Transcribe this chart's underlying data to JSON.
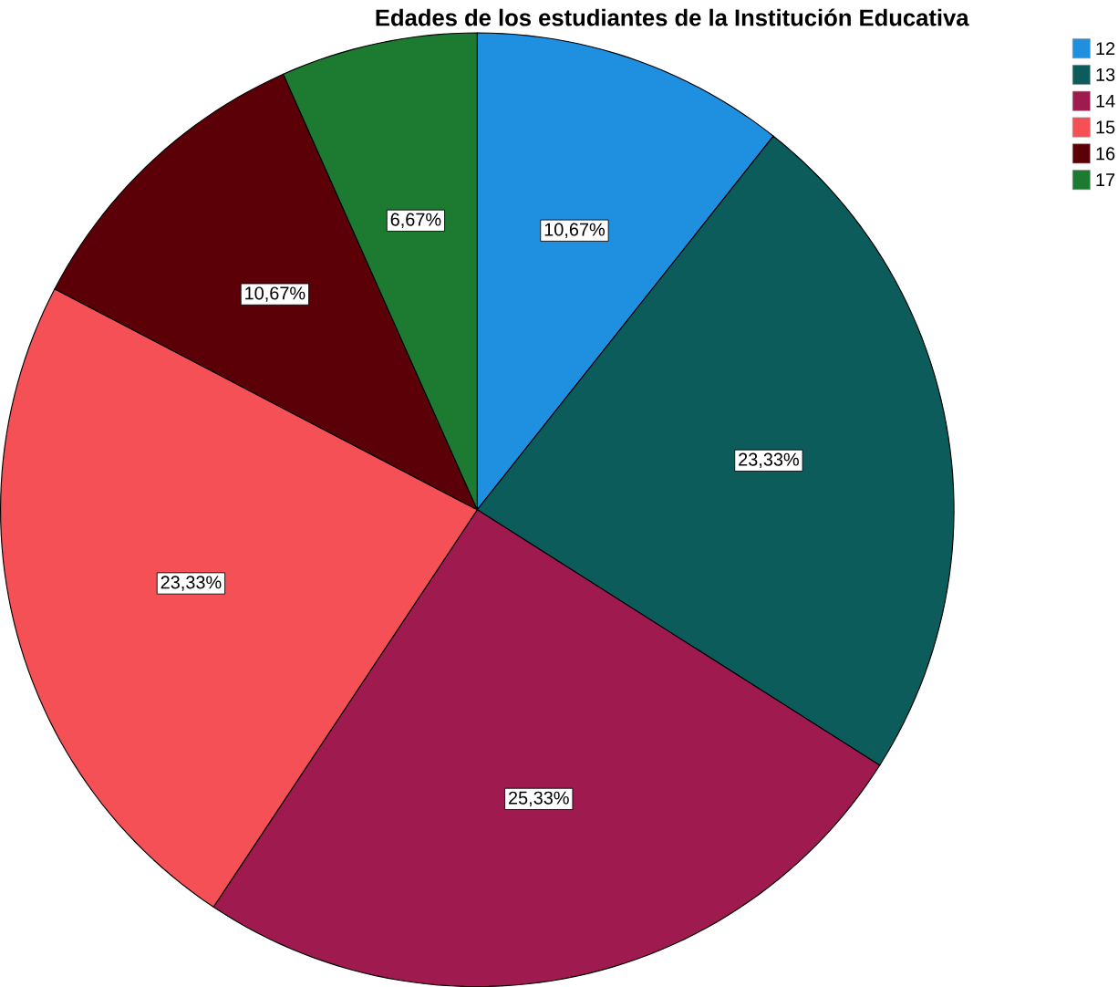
{
  "chart_data": {
    "type": "pie",
    "title": "Edades de los estudiantes de la Institución Educativa",
    "categories": [
      "12",
      "13",
      "14",
      "15",
      "16",
      "17"
    ],
    "values": [
      10.67,
      23.33,
      25.33,
      23.33,
      10.67,
      6.67
    ],
    "colors": [
      "#1f8fe0",
      "#0b5c5a",
      "#9e1a4f",
      "#f55055",
      "#5c0008",
      "#1d7a31"
    ],
    "value_labels": [
      "10,67%",
      "23,33%",
      "25,33%",
      "23,33%",
      "10,67%",
      "6,67%"
    ],
    "legend": "top right"
  }
}
